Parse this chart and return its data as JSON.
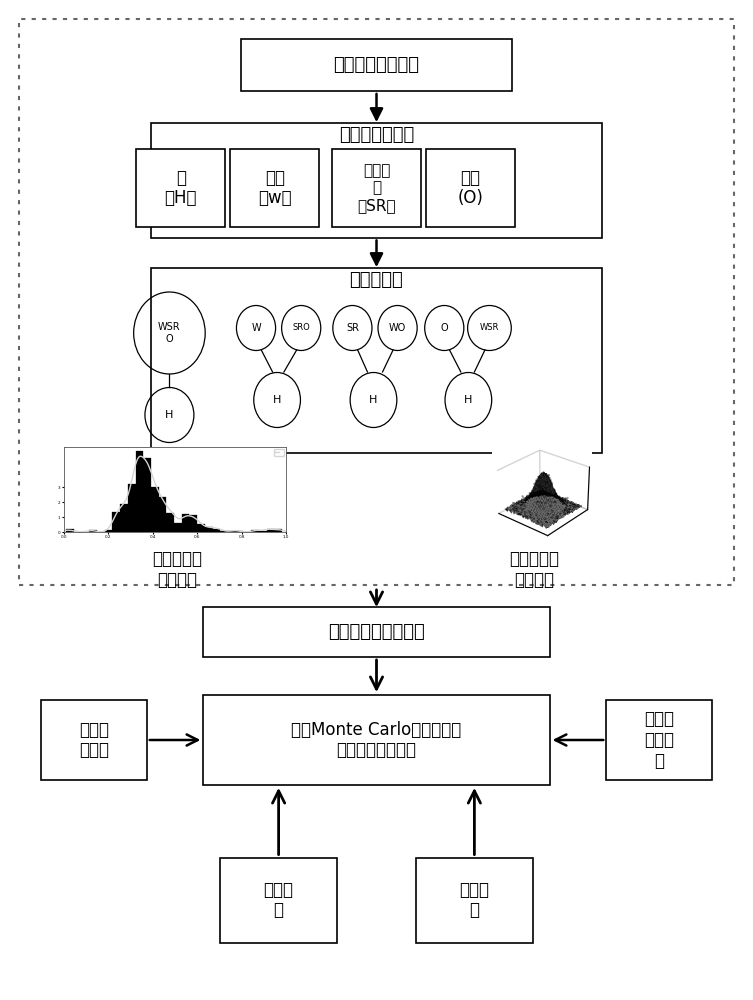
{
  "bg_color": "#ffffff",
  "box_edge_color": "#000000",
  "box_fill": "#ffffff",
  "text_color": "#000000",
  "arrow_color": "#000000",
  "fig_width": 7.53,
  "fig_height": 10.0,
  "dpi": 100,
  "survey_text": "居民出行调研分析",
  "classify_text": "出行目的地分类",
  "home_text": "家\n（H）",
  "work_text": "工作\n（w）",
  "social_text": "社交娱\n乐\n（SR）",
  "other_text": "其他\n(O)",
  "chain_text": "出行链结构",
  "time_label": "出行链时间\n特性分析",
  "space_label": "出行链空间\n特性分析",
  "vehicle_text": "车辆一天内时空分布",
  "monte_text": "基于Monte Carlo模拟的电动\n汽车充电负荷计算",
  "kwh_text": "每公里\n耗电量",
  "charge_power_text": "充电功\n率及效\n率",
  "charge_cond_text": "充电条\n件",
  "charge_time_text": "充电时\n长",
  "font_cn": "SimHei",
  "font_size_large": 13,
  "font_size_med": 12,
  "font_size_small": 11,
  "font_size_tiny": 8,
  "font_size_ellipse": 7
}
